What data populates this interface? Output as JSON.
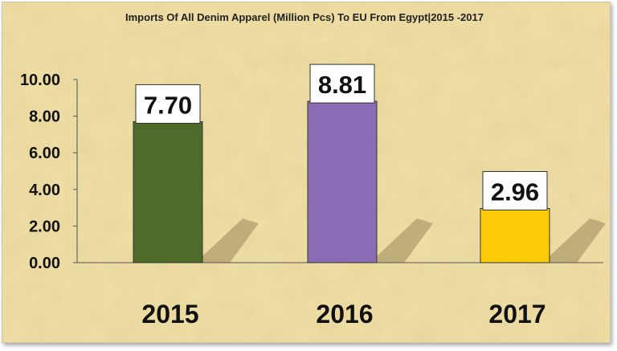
{
  "chart_data": {
    "type": "bar",
    "title": "Imports Of All Denim Apparel (Million Pcs) To EU From Egypt|2015 -2017",
    "xlabel": "",
    "ylabel": "",
    "categories": [
      "2015",
      "2016",
      "2017"
    ],
    "values": [
      7.7,
      8.81,
      2.96
    ],
    "value_labels": [
      "7.70",
      "8.81",
      "2.96"
    ],
    "ylim": [
      0,
      10
    ],
    "yticks": [
      "0.00",
      "2.00",
      "4.00",
      "6.00",
      "8.00",
      "10.00"
    ],
    "bar_colors": [
      "#4e6b2a",
      "#8a6cb4",
      "#ffcc0a"
    ],
    "grid": false,
    "legend": "none",
    "background_color": "#f0dfa6"
  }
}
